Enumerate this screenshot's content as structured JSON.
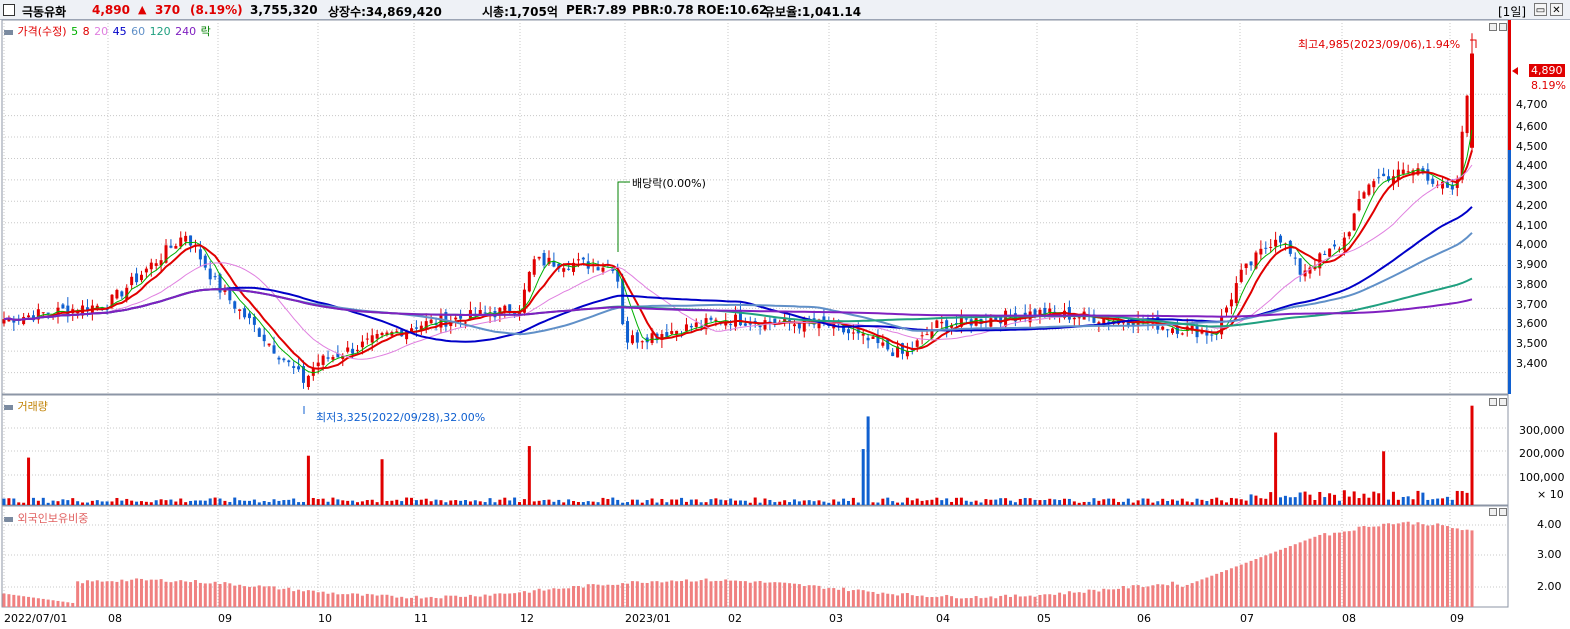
{
  "header": {
    "stock_name": "극동유화",
    "price": "4,890",
    "change_arrow": "▲",
    "change": "370",
    "change_pct": "(8.19%)",
    "volume": "3,755,320",
    "listed_shares": "상장수:34,869,420",
    "market_cap": "시총:1,705억",
    "per": "PER:7.89",
    "pbr": "PBR:0.78",
    "roe": "ROE:10.62",
    "float_ratio": "유보율:1,041.14",
    "period_label": "[1일]"
  },
  "colors": {
    "up": "#e00000",
    "down": "#1060d0",
    "ma5": "#00b000",
    "ma8": "#e00000",
    "ma20": "#e080e0",
    "ma45": "#0000c8",
    "ma60": "#6090c8",
    "ma120": "#20a080",
    "ma240": "#8020c0",
    "grid": "#c8c8c8"
  },
  "legend": {
    "price_label": "가격(수정)",
    "ma": [
      "5",
      "8",
      "20",
      "45",
      "60",
      "120",
      "240"
    ],
    "ex_label": "락",
    "volume_label": "거래량",
    "foreign_label": "외국인보유비중"
  },
  "annotations": {
    "high": "최고4,985(2023/09/06),1.94%",
    "low": "최저3,325(2022/09/28),32.00%",
    "dividend": "배당락(0.00%)"
  },
  "price_axis": {
    "ticks": [
      "4,700",
      "4,600",
      "4,500",
      "4,400",
      "4,300",
      "4,200",
      "4,100",
      "4,000",
      "3,900",
      "3,800",
      "3,700",
      "3,600",
      "3,500",
      "3,400"
    ],
    "current_price": "4,890",
    "current_pct": "8.19%"
  },
  "volume_axis": {
    "ticks": [
      "300,000",
      "200,000",
      "100,000"
    ],
    "multiplier": "× 10"
  },
  "foreign_axis": {
    "ticks": [
      "4.00",
      "3.00",
      "2.00"
    ]
  },
  "x_axis": {
    "labels": [
      "2022/07/01",
      "08",
      "09",
      "10",
      "11",
      "12",
      "2023/01",
      "02",
      "03",
      "04",
      "05",
      "06",
      "07",
      "08",
      "09"
    ]
  },
  "chart_data": {
    "type": "candlestick",
    "price_range": [
      3300,
      5000
    ],
    "closes_anchor": [
      [
        "2022/07/01",
        3650
      ],
      [
        "2022/08",
        3720
      ],
      [
        "2022/08/25",
        4050
      ],
      [
        "2022/09",
        3800
      ],
      [
        "2022/09/28",
        3360
      ],
      [
        "2022/10",
        3450
      ],
      [
        "2022/11",
        3620
      ],
      [
        "2022/12",
        3700
      ],
      [
        "2022/12/05",
        3920
      ],
      [
        "2022/12/28",
        3900
      ],
      [
        "2023/01/02",
        3550
      ],
      [
        "2023/02",
        3650
      ],
      [
        "2023/03",
        3620
      ],
      [
        "2023/03/20",
        3480
      ],
      [
        "2023/04",
        3620
      ],
      [
        "2023/05",
        3680
      ],
      [
        "2023/06",
        3640
      ],
      [
        "2023/06/28",
        3580
      ],
      [
        "2023/07",
        3850
      ],
      [
        "2023/07/10",
        4050
      ],
      [
        "2023/07/20",
        3870
      ],
      [
        "2023/08",
        4000
      ],
      [
        "2023/08/10",
        4300
      ],
      [
        "2023/08/25",
        4350
      ],
      [
        "2023/09/01",
        4220
      ],
      [
        "2023/09/06",
        4890
      ]
    ],
    "volume_range": [
      0,
      380000
    ],
    "foreign_ratio_range": [
      1.4,
      4.4
    ]
  }
}
